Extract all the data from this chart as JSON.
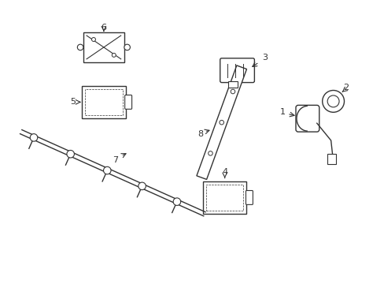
{
  "bg_color": "#ffffff",
  "line_color": "#333333",
  "label_color": "#000000",
  "figsize": [
    4.89,
    3.6
  ],
  "dpi": 100
}
